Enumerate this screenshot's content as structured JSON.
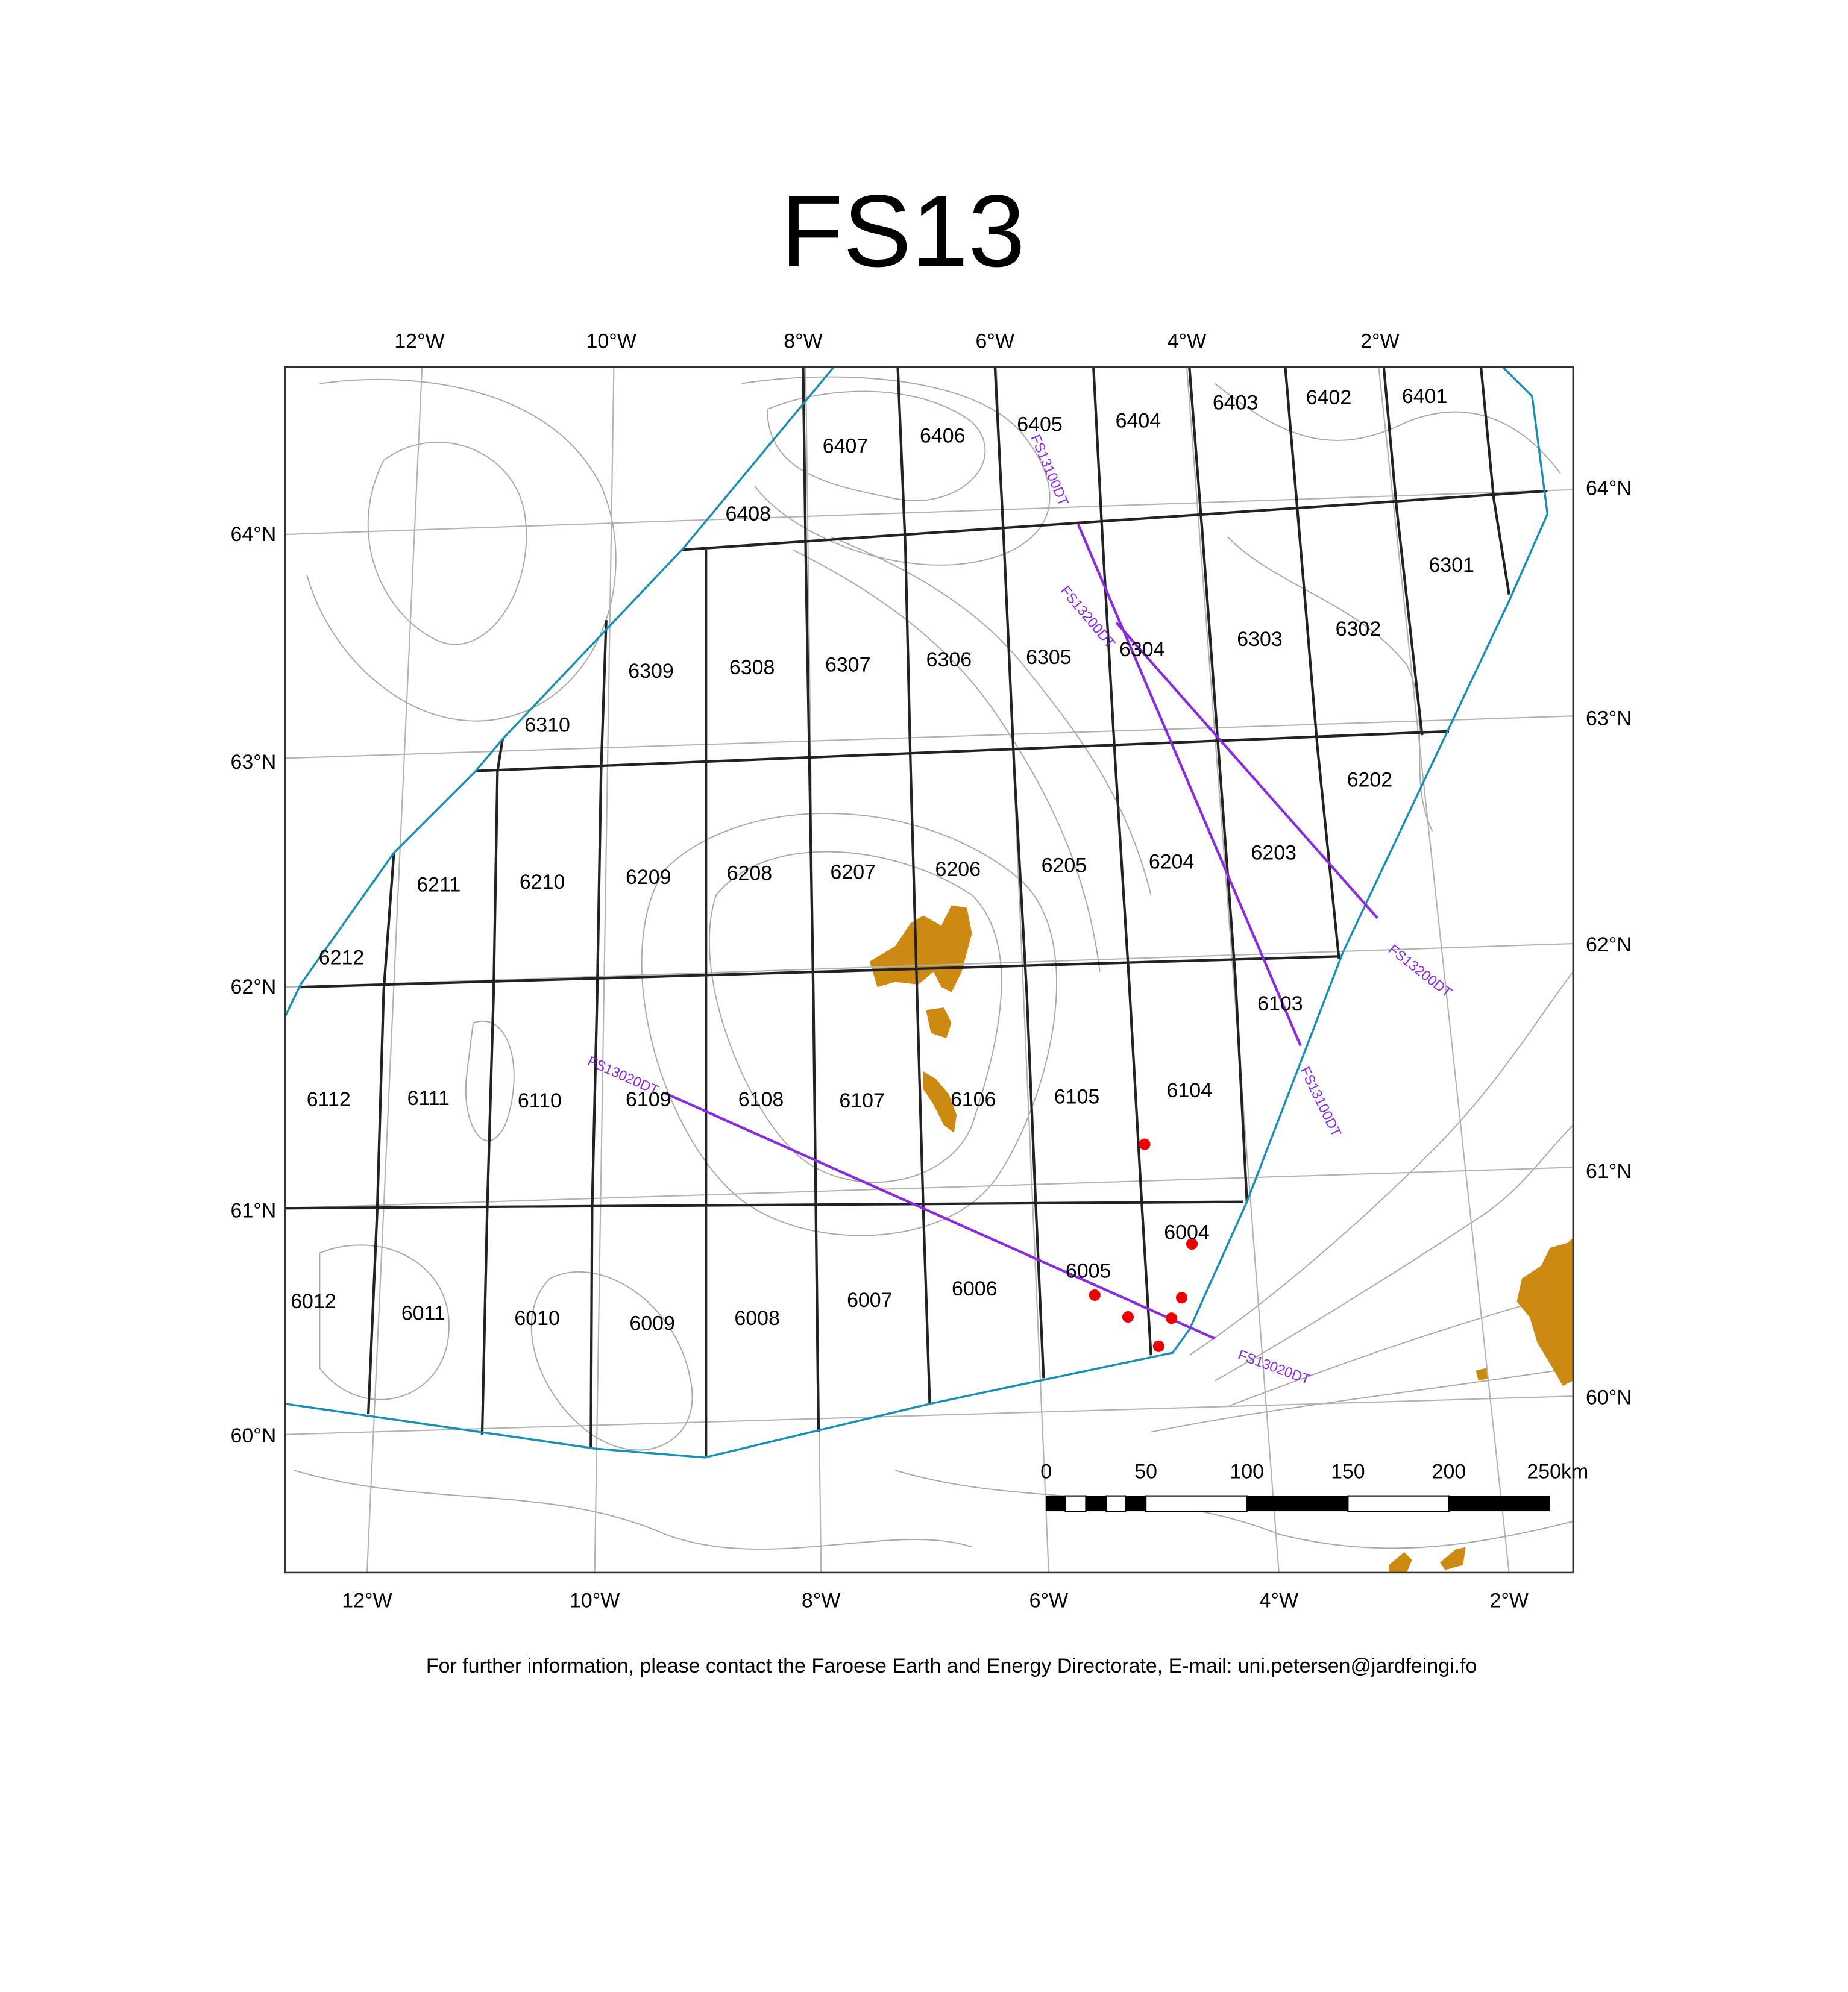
{
  "title": "FS13",
  "top_labels": [
    "12°W",
    "10°W",
    "8°W",
    "6°W",
    "4°W",
    "2°W"
  ],
  "bottom_labels": [
    "12°W",
    "10°W",
    "8°W",
    "6°W",
    "4°W",
    "2°W"
  ],
  "left_labels": [
    "64°N",
    "63°N",
    "62°N",
    "61°N",
    "60°N"
  ],
  "right_labels": [
    "64°N",
    "63°N",
    "62°N",
    "61°N",
    "60°N"
  ],
  "blocks": [
    "6407",
    "6406",
    "6405",
    "6404",
    "6403",
    "6402",
    "6401",
    "6408",
    "6301",
    "6309",
    "6308",
    "6307",
    "6306",
    "6305",
    "6304",
    "6303",
    "6302",
    "6310",
    "6202",
    "6211",
    "6210",
    "6209",
    "6208",
    "6207",
    "6206",
    "6205",
    "6204",
    "6203",
    "6212",
    "6103",
    "6112",
    "6111",
    "6110",
    "6109",
    "6108",
    "6107",
    "6106",
    "6105",
    "6104",
    "6004",
    "6005",
    "6012",
    "6011",
    "6010",
    "6009",
    "6008",
    "6007",
    "6006"
  ],
  "line_labels": [
    "FS13100DT",
    "FS13200DT",
    "FS13200DT",
    "FS13100DT",
    "FS13020DT",
    "FS13020DT"
  ],
  "scale_labels": [
    "0",
    "50",
    "100",
    "150",
    "200",
    "250km"
  ],
  "footer": "For further information, please contact the Faroese Earth and Energy Directorate, E-mail: uni.petersen@jardfeingi.fo"
}
